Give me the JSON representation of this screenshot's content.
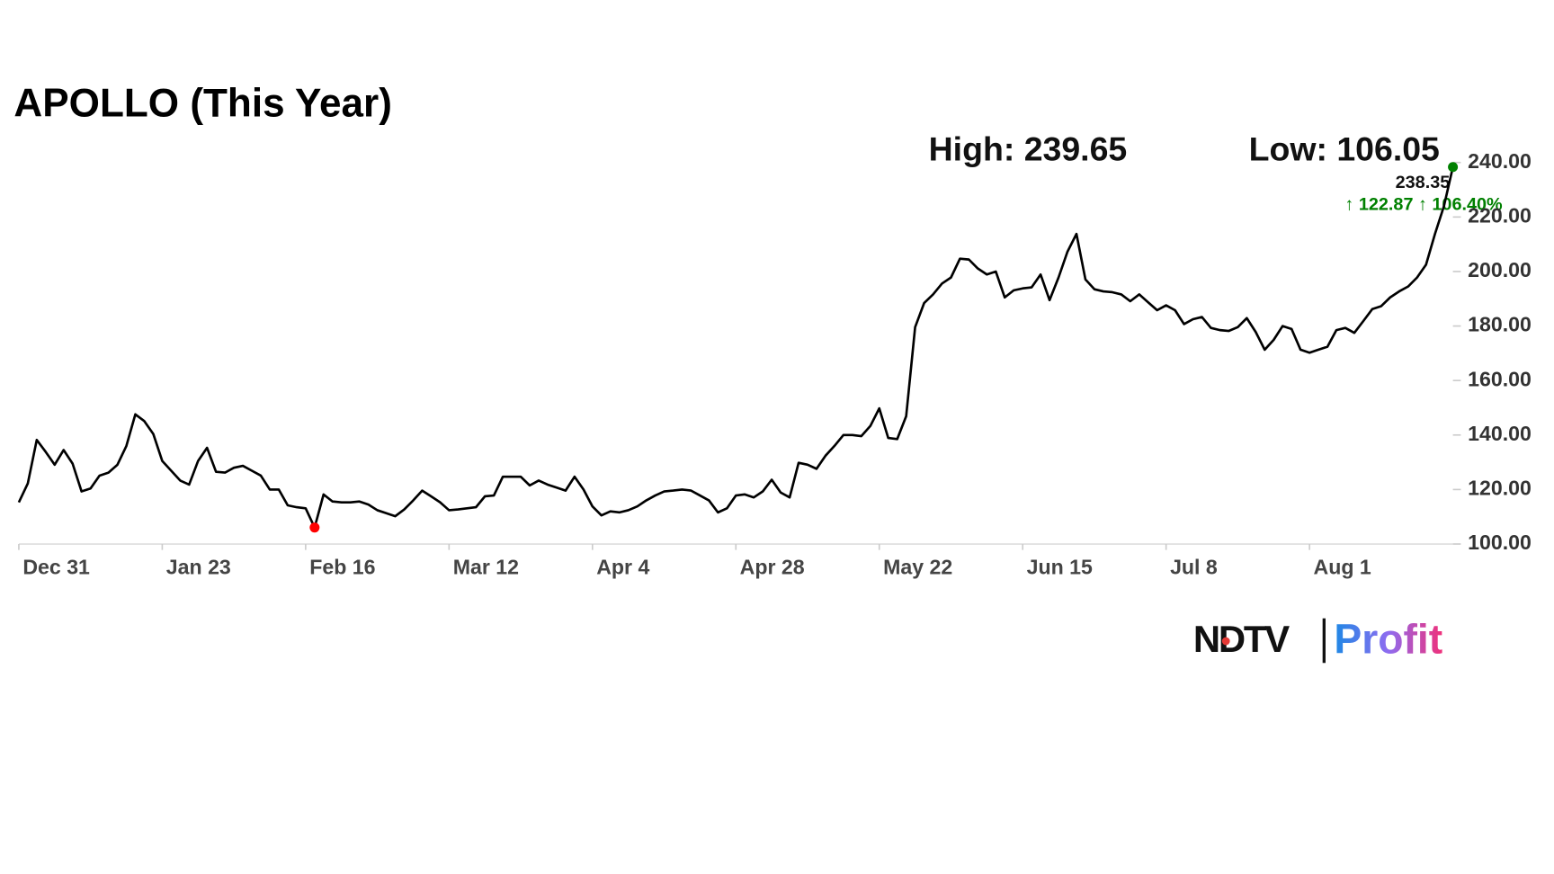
{
  "chart_data": {
    "type": "line",
    "title": "APOLLO (This Year)",
    "high_label": "High: 239.65",
    "low_label": "Low: 106.05",
    "last_label": "238.35",
    "change_label": "↑ 122.87 ↑ 106.40%",
    "categories": [
      "Dec 31",
      null,
      null,
      null,
      null,
      null,
      null,
      null,
      null,
      null,
      null,
      null,
      null,
      null,
      null,
      null,
      "Jan 23",
      null,
      null,
      null,
      null,
      null,
      null,
      null,
      null,
      null,
      null,
      null,
      null,
      null,
      null,
      null,
      "Feb 16",
      null,
      null,
      null,
      null,
      null,
      null,
      null,
      null,
      null,
      null,
      null,
      null,
      null,
      null,
      null,
      "Mar 12",
      null,
      null,
      null,
      null,
      null,
      null,
      null,
      null,
      null,
      null,
      null,
      null,
      null,
      null,
      null,
      "Apr 4",
      null,
      null,
      null,
      null,
      null,
      null,
      null,
      null,
      null,
      null,
      null,
      null,
      null,
      null,
      null,
      "Apr 28",
      null,
      null,
      null,
      null,
      null,
      null,
      null,
      null,
      null,
      null,
      null,
      null,
      null,
      null,
      null,
      "May 22",
      null,
      null,
      null,
      null,
      null,
      null,
      null,
      null,
      null,
      null,
      null,
      null,
      null,
      null,
      null,
      "Jun 15",
      null,
      null,
      null,
      null,
      null,
      null,
      null,
      null,
      null,
      null,
      null,
      null,
      null,
      null,
      null,
      "Jul 8",
      null,
      null,
      null,
      null,
      null,
      null,
      null,
      null,
      null,
      null,
      null,
      null,
      null,
      null,
      null,
      "Aug 1",
      null,
      null,
      null,
      null,
      null,
      null,
      null,
      null,
      null,
      null,
      null,
      null,
      null,
      null,
      null,
      null
    ],
    "series": [
      {
        "color": "#000000",
        "values": [
          115.3,
          122.2,
          138.2,
          133.8,
          129.1,
          134.5,
          129.5,
          119.3,
          120.4,
          125.1,
          126.2,
          129.1,
          136,
          147.6,
          145.1,
          140.4,
          130.5,
          126.9,
          123.3,
          121.8,
          130.5,
          135.3,
          126.5,
          126.2,
          128,
          128.7,
          126.9,
          125.1,
          120,
          120,
          114.2,
          113.5,
          113.1,
          106.05,
          118.2,
          115.6,
          115.3,
          115.3,
          115.6,
          114.5,
          112.4,
          111.3,
          110.2,
          112.7,
          116,
          119.6,
          117.5,
          115.3,
          112.4,
          112.7,
          113.1,
          113.5,
          117.5,
          117.8,
          124.7,
          124.7,
          124.7,
          121.5,
          123.3,
          121.8,
          120.7,
          119.6,
          124.7,
          120,
          113.8,
          110.5,
          112,
          111.6,
          112.4,
          113.8,
          116,
          117.8,
          119.3,
          119.6,
          120,
          119.6,
          117.8,
          116,
          111.6,
          113.1,
          117.8,
          118.2,
          117.1,
          119.3,
          123.6,
          118.9,
          117.1,
          129.8,
          129.1,
          127.6,
          132.4,
          136,
          140,
          140,
          139.6,
          143.3,
          149.8,
          138.9,
          138.5,
          146.9,
          179.6,
          188.4,
          191.6,
          195.6,
          197.8,
          204.7,
          204.4,
          201.1,
          198.9,
          200,
          190.5,
          193.1,
          193.8,
          194.2,
          198.9,
          189.5,
          197.8,
          207.3,
          213.8,
          197.1,
          193.5,
          192.7,
          192.4,
          191.6,
          189.1,
          191.6,
          188.7,
          185.8,
          187.6,
          185.8,
          180.7,
          182.5,
          183.3,
          179.3,
          178.5,
          178.2,
          179.6,
          182.9,
          177.8,
          171.3,
          174.9,
          180,
          178.9,
          171.3,
          170.2,
          171.3,
          172.4,
          178.5,
          179.3,
          177.5,
          181.8,
          186.2,
          187.3,
          190.5,
          192.7,
          194.5,
          197.8,
          202.5,
          213.8,
          224,
          238.35
        ]
      }
    ],
    "low_marker_color": "#ff0000",
    "last_marker_color": "#008000",
    "ylim": [
      100,
      240
    ],
    "yticks": [
      {
        "value": 100,
        "label": "100.00"
      },
      {
        "value": 120,
        "label": "120.00"
      },
      {
        "value": 140,
        "label": "140.00"
      },
      {
        "value": 160,
        "label": "160.00"
      },
      {
        "value": 180,
        "label": "180.00"
      },
      {
        "value": 200,
        "label": "200.00"
      },
      {
        "value": 220,
        "label": "220.00"
      },
      {
        "value": 240,
        "label": "240.00"
      }
    ],
    "grid": false
  },
  "logo": {
    "brand": "NDTV",
    "product": "Profit"
  }
}
